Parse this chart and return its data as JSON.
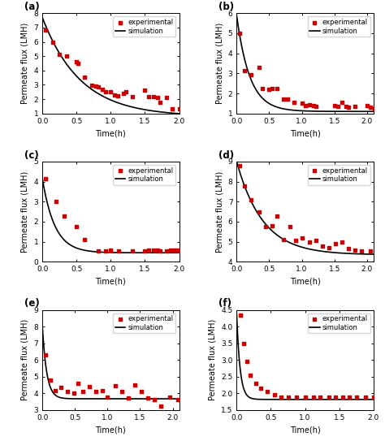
{
  "panels": [
    {
      "label": "(a)",
      "ylim": [
        1,
        8
      ],
      "yticks": [
        1,
        2,
        3,
        4,
        5,
        6,
        7,
        8
      ],
      "xlim": [
        0,
        2
      ],
      "xticks": [
        0,
        0.5,
        1,
        1.5,
        2
      ],
      "exp_x": [
        0.05,
        0.15,
        0.25,
        0.35,
        0.5,
        0.52,
        0.62,
        0.72,
        0.78,
        0.82,
        0.88,
        0.92,
        1.0,
        1.05,
        1.1,
        1.18,
        1.22,
        1.32,
        1.5,
        1.55,
        1.62,
        1.68,
        1.72,
        1.82,
        1.9,
        2.0
      ],
      "exp_y": [
        6.8,
        6.0,
        5.1,
        5.0,
        4.6,
        4.5,
        3.55,
        2.95,
        2.9,
        2.85,
        2.7,
        2.5,
        2.5,
        2.3,
        2.25,
        2.4,
        2.5,
        2.2,
        2.6,
        2.2,
        2.15,
        2.1,
        1.75,
        2.1,
        1.3,
        1.3
      ],
      "sim_params": [
        7.7,
        1.8,
        0.8
      ]
    },
    {
      "label": "(b)",
      "ylim": [
        1,
        6
      ],
      "yticks": [
        1,
        2,
        3,
        4,
        5,
        6
      ],
      "xlim": [
        0,
        2.1
      ],
      "xticks": [
        0,
        0.5,
        1,
        1.5,
        2
      ],
      "exp_x": [
        0.05,
        0.12,
        0.22,
        0.35,
        0.4,
        0.5,
        0.55,
        0.62,
        0.72,
        0.78,
        0.88,
        1.0,
        1.05,
        1.12,
        1.18,
        1.22,
        1.5,
        1.55,
        1.62,
        1.68,
        1.72,
        1.82,
        2.0,
        2.05,
        2.12
      ],
      "exp_y": [
        5.0,
        3.15,
        2.95,
        3.3,
        2.25,
        2.2,
        2.25,
        2.25,
        1.7,
        1.7,
        1.55,
        1.5,
        1.4,
        1.45,
        1.4,
        1.35,
        1.4,
        1.35,
        1.55,
        1.35,
        1.3,
        1.35,
        1.4,
        1.3,
        1.25
      ],
      "sim_params": [
        5.9,
        5.0,
        1.1
      ]
    },
    {
      "label": "(c)",
      "ylim": [
        0,
        5
      ],
      "yticks": [
        0,
        1,
        2,
        3,
        4,
        5
      ],
      "xlim": [
        0,
        2
      ],
      "xticks": [
        0,
        0.5,
        1,
        1.5,
        2
      ],
      "exp_x": [
        0.05,
        0.2,
        0.32,
        0.5,
        0.62,
        0.82,
        0.92,
        1.0,
        1.12,
        1.32,
        1.5,
        1.55,
        1.62,
        1.68,
        1.72,
        1.82,
        1.88,
        1.92,
        1.97,
        2.02
      ],
      "exp_y": [
        4.15,
        3.0,
        2.3,
        1.75,
        1.1,
        0.55,
        0.55,
        0.6,
        0.55,
        0.55,
        0.55,
        0.6,
        0.6,
        0.6,
        0.55,
        0.55,
        0.6,
        0.6,
        0.6,
        0.55
      ],
      "sim_params": [
        4.15,
        5.5,
        0.45
      ]
    },
    {
      "label": "(d)",
      "ylim": [
        4,
        9
      ],
      "yticks": [
        4,
        5,
        6,
        7,
        8,
        9
      ],
      "xlim": [
        0,
        2.1
      ],
      "xticks": [
        0,
        0.5,
        1,
        1.5,
        2
      ],
      "exp_x": [
        0.05,
        0.12,
        0.22,
        0.35,
        0.45,
        0.55,
        0.62,
        0.72,
        0.82,
        0.9,
        1.0,
        1.12,
        1.22,
        1.32,
        1.42,
        1.52,
        1.62,
        1.72,
        1.82,
        1.92,
        2.05
      ],
      "exp_y": [
        8.8,
        7.8,
        7.1,
        6.5,
        5.75,
        5.8,
        6.3,
        5.1,
        5.75,
        5.05,
        5.2,
        5.0,
        5.05,
        4.8,
        4.7,
        4.9,
        5.0,
        4.65,
        4.6,
        4.55,
        4.55
      ],
      "sim_params": [
        9.0,
        2.5,
        4.35
      ]
    },
    {
      "label": "(e)",
      "ylim": [
        3,
        9
      ],
      "yticks": [
        3,
        4,
        5,
        6,
        7,
        8,
        9
      ],
      "xlim": [
        0,
        2.1
      ],
      "xticks": [
        0,
        0.5,
        1,
        1.5,
        2
      ],
      "exp_x": [
        0.05,
        0.12,
        0.2,
        0.28,
        0.38,
        0.48,
        0.55,
        0.62,
        0.72,
        0.82,
        0.92,
        1.0,
        1.12,
        1.22,
        1.32,
        1.42,
        1.52,
        1.62,
        1.72,
        1.82,
        1.95,
        2.08
      ],
      "exp_y": [
        6.3,
        4.8,
        4.15,
        4.35,
        4.1,
        4.0,
        4.6,
        4.1,
        4.4,
        4.1,
        4.15,
        3.8,
        4.45,
        4.1,
        3.75,
        4.5,
        4.1,
        3.75,
        3.65,
        3.25,
        3.8,
        3.65
      ],
      "sim_params": [
        8.05,
        15.0,
        3.68
      ]
    },
    {
      "label": "(f)",
      "ylim": [
        1.5,
        4.5
      ],
      "yticks": [
        1.5,
        2.0,
        2.5,
        3.0,
        3.5,
        4.0,
        4.5
      ],
      "xlim": [
        0,
        2
      ],
      "xticks": [
        0,
        0.5,
        1,
        1.5,
        2
      ],
      "exp_x": [
        0.05,
        0.1,
        0.15,
        0.2,
        0.28,
        0.35,
        0.45,
        0.55,
        0.65,
        0.75,
        0.88,
        1.0,
        1.12,
        1.22,
        1.35,
        1.45,
        1.55,
        1.65,
        1.75,
        1.88,
        2.0
      ],
      "exp_y": [
        4.35,
        3.5,
        2.95,
        2.55,
        2.3,
        2.15,
        2.05,
        1.95,
        1.88,
        1.88,
        1.88,
        1.88,
        1.88,
        1.88,
        1.88,
        1.88,
        1.88,
        1.88,
        1.88,
        1.88,
        1.88
      ],
      "sim_params": [
        4.4,
        20.0,
        1.82
      ]
    }
  ],
  "xlabel": "Time(h)",
  "ylabel": "Permeate flux (LMH)",
  "legend_exp": "experimental",
  "legend_sim": "simulation",
  "exp_color": "#cc0000",
  "sim_color": "#000000",
  "bg_color": "#ffffff",
  "marker": "s",
  "marker_size": 3.5,
  "line_width": 1.2,
  "tick_label_size": 6.5,
  "axis_label_size": 7,
  "legend_size": 6
}
